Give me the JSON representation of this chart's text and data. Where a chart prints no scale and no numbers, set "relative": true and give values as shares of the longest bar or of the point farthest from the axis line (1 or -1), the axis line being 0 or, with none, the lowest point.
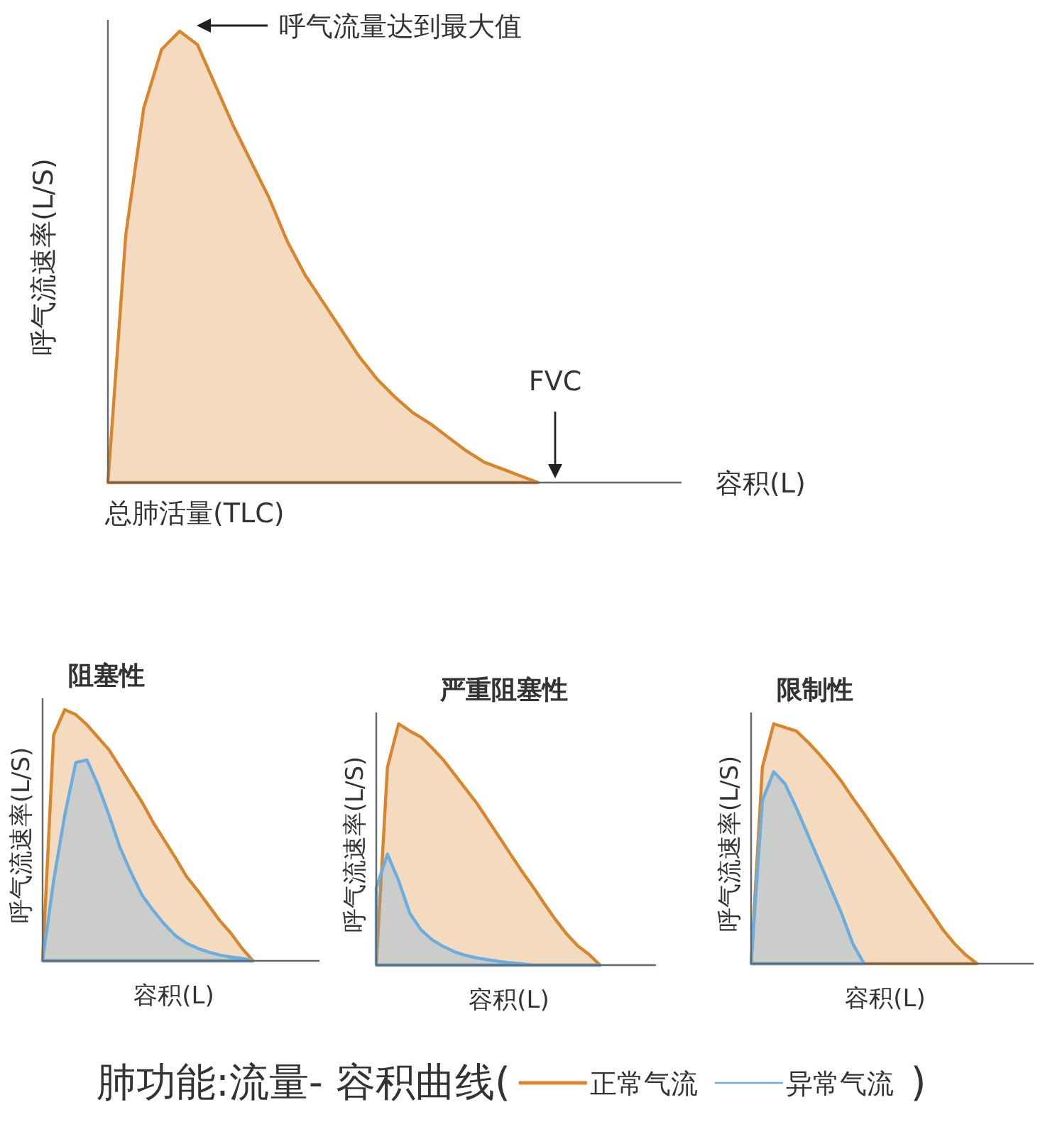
{
  "chart_data": [
    {
      "type": "area",
      "relative": true,
      "ylabel": "呼气流速率(L/S)",
      "xlabel": "容积(L)",
      "annotations": [
        "呼气流量达到最大值",
        "FVC",
        "总肺活量(TLC)"
      ],
      "categories": [
        null,
        null,
        null,
        null,
        null,
        null,
        null,
        null,
        null,
        null,
        null,
        null,
        null,
        null,
        null,
        null,
        null,
        null,
        null,
        null,
        null,
        null,
        null,
        null,
        null,
        null,
        null,
        null,
        null,
        null,
        null,
        null,
        null
      ],
      "series": [
        {
          "color": "#d9852b",
          "values": [
            0,
            0.55,
            0.83,
            0.96,
            1.0,
            0.97,
            0.88,
            0.79,
            0.71,
            0.63,
            0.535,
            0.46,
            0.4,
            0.34,
            0.28,
            0.23,
            0.19,
            0.155,
            0.13,
            0.1,
            0.07,
            0.045,
            0.03,
            0.015,
            0,
            null,
            null,
            null,
            null,
            null,
            null,
            null,
            null
          ]
        }
      ]
    },
    {
      "type": "area",
      "relative": true,
      "title": "阻塞性",
      "ylabel": "呼气流速率(L/S)",
      "xlabel": "容积(L)",
      "categories": [
        null,
        null,
        null,
        null,
        null,
        null,
        null,
        null,
        null,
        null,
        null,
        null,
        null,
        null,
        null,
        null,
        null,
        null,
        null,
        null,
        null,
        null,
        null,
        null,
        null,
        null
      ],
      "series": [
        {
          "color": "#d9852b",
          "values": [
            0,
            0.9,
            1.0,
            0.98,
            0.94,
            0.89,
            0.84,
            0.77,
            0.7,
            0.63,
            0.55,
            0.48,
            0.41,
            0.335,
            0.28,
            0.22,
            0.16,
            0.11,
            0.05,
            0,
            null,
            null,
            null,
            null,
            null,
            null
          ]
        },
        {
          "color": "#6aaee0",
          "values": [
            0,
            0.32,
            0.58,
            0.79,
            0.8,
            0.7,
            0.58,
            0.45,
            0.35,
            0.26,
            0.2,
            0.146,
            0.1,
            0.07,
            0.05,
            0.035,
            0.023,
            0.015,
            0.01,
            0,
            null,
            null,
            null,
            null,
            null,
            null
          ]
        }
      ]
    },
    {
      "type": "area",
      "relative": true,
      "title": "严重阻塞性",
      "ylabel": "呼气流速率(L/S)",
      "xlabel": "容积(L)",
      "legend": "bottom",
      "annotations": [
        "肺功能:流量- 容积曲线(",
        ")"
      ],
      "categories": [
        null,
        null,
        null,
        null,
        null,
        null,
        null,
        null,
        null,
        null,
        null,
        null,
        null,
        null,
        null,
        null,
        null,
        null,
        null,
        null,
        null,
        null,
        null,
        null,
        null,
        null
      ],
      "series": [
        {
          "name": "正常气流",
          "color": "#d9852b",
          "values": [
            0,
            0.82,
            1.0,
            0.97,
            0.945,
            0.9,
            0.85,
            0.79,
            0.73,
            0.67,
            0.6,
            0.53,
            0.46,
            0.39,
            0.325,
            0.256,
            0.19,
            0.13,
            0.08,
            0.045,
            0,
            null,
            null,
            null,
            null,
            null
          ]
        },
        {
          "name": "异常气流",
          "color": "#6aaee0",
          "values": [
            0.32,
            0.46,
            0.35,
            0.215,
            0.146,
            0.105,
            0.077,
            0.055,
            0.04,
            0.03,
            0.022,
            0.015,
            0.01,
            0.005,
            0,
            0,
            0,
            0,
            0,
            0,
            0,
            null,
            null,
            null,
            null,
            null
          ]
        }
      ]
    },
    {
      "type": "area",
      "relative": true,
      "title": "限制性",
      "ylabel": "呼气流速率(L/S)",
      "xlabel": "容积(L)",
      "categories": [
        null,
        null,
        null,
        null,
        null,
        null,
        null,
        null,
        null,
        null,
        null,
        null,
        null,
        null,
        null,
        null,
        null,
        null,
        null,
        null,
        null,
        null,
        null,
        null,
        null,
        null
      ],
      "series": [
        {
          "color": "#d9852b",
          "values": [
            0,
            0.82,
            1.0,
            0.985,
            0.97,
            0.925,
            0.875,
            0.82,
            0.76,
            0.69,
            0.625,
            0.555,
            0.486,
            0.417,
            0.347,
            0.278,
            0.21,
            0.14,
            0.083,
            0.036,
            0,
            null,
            null,
            null,
            null,
            null
          ]
        },
        {
          "color": "#6aaee0",
          "values": [
            0,
            0.68,
            0.8,
            0.75,
            0.65,
            0.54,
            0.43,
            0.32,
            0.21,
            0.083,
            0,
            null,
            null,
            null,
            null,
            null,
            null,
            null,
            null,
            null,
            null,
            null,
            null,
            null,
            null,
            null
          ]
        }
      ]
    }
  ]
}
